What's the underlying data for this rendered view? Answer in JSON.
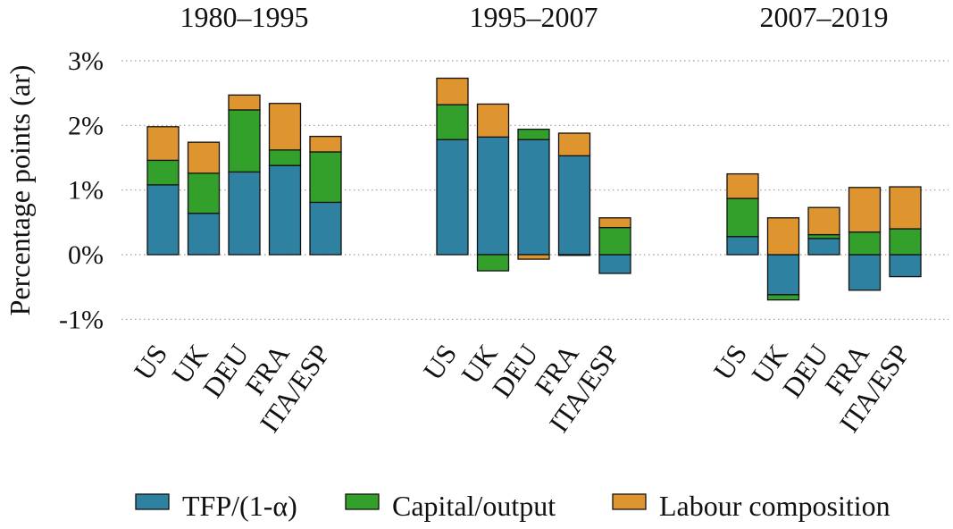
{
  "chart_data": {
    "type": "bar",
    "stacked": true,
    "ylabel": "Percentage points (ar)",
    "ylim": [
      -1,
      3
    ],
    "yticks": [
      -1,
      0,
      1,
      2,
      3
    ],
    "ytick_labels": [
      "-1%",
      "0%",
      "1%",
      "2%",
      "3%"
    ],
    "grid": "horizontal dotted",
    "legend_position": "bottom",
    "colors": {
      "tfp": "#2e81a0",
      "capital": "#33a02c",
      "labour": "#df952f"
    },
    "legend": [
      {
        "key": "tfp",
        "label": "TFP/(1-α)"
      },
      {
        "key": "capital",
        "label": "Capital/output"
      },
      {
        "key": "labour",
        "label": "Labour composition"
      }
    ],
    "panels": [
      {
        "title": "1980–1995",
        "categories": [
          "US",
          "UK",
          "DEU",
          "FRA",
          "ITA/ESP"
        ],
        "series": [
          {
            "key": "tfp",
            "name": "TFP/(1-α)",
            "values": [
              1.08,
              0.64,
              1.28,
              1.38,
              0.81
            ]
          },
          {
            "key": "capital",
            "name": "Capital/output",
            "values": [
              0.38,
              0.62,
              0.96,
              0.24,
              0.78
            ]
          },
          {
            "key": "labour",
            "name": "Labour composition",
            "values": [
              0.52,
              0.48,
              0.23,
              0.72,
              0.24
            ]
          }
        ]
      },
      {
        "title": "1995–2007",
        "categories": [
          "US",
          "UK",
          "DEU",
          "FRA",
          "ITA/ESP"
        ],
        "series": [
          {
            "key": "tfp",
            "name": "TFP/(1-α)",
            "values": [
              1.78,
              1.82,
              1.78,
              1.53,
              -0.29
            ]
          },
          {
            "key": "capital",
            "name": "Capital/output",
            "values": [
              0.54,
              -0.25,
              0.16,
              -0.01,
              0.42
            ]
          },
          {
            "key": "labour",
            "name": "Labour composition",
            "values": [
              0.41,
              0.51,
              -0.07,
              0.35,
              0.15
            ]
          }
        ]
      },
      {
        "title": "2007–2019",
        "categories": [
          "US",
          "UK",
          "DEU",
          "FRA",
          "ITA/ESP"
        ],
        "series": [
          {
            "key": "tfp",
            "name": "TFP/(1-α)",
            "values": [
              0.28,
              -0.62,
              0.25,
              -0.55,
              -0.34
            ]
          },
          {
            "key": "capital",
            "name": "Capital/output",
            "values": [
              0.59,
              -0.08,
              0.06,
              0.35,
              0.4
            ]
          },
          {
            "key": "labour",
            "name": "Labour composition",
            "values": [
              0.38,
              0.57,
              0.42,
              0.69,
              0.65
            ]
          }
        ]
      }
    ]
  }
}
